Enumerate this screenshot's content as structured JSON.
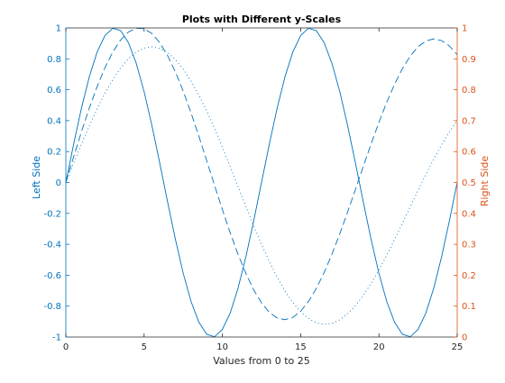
{
  "chart_data": {
    "type": "line",
    "title": "Plots with Different y-Scales",
    "xlabel": "Values from 0 to 25",
    "ylabel_left": "Left Side",
    "ylabel_right": "Right Side",
    "xlim": [
      0,
      25
    ],
    "ylim_left": [
      -1,
      1
    ],
    "ylim_right": [
      0,
      1
    ],
    "grid": false,
    "legend": "none",
    "x_ticks": [
      0,
      5,
      10,
      15,
      20,
      25
    ],
    "y_ticks_left": [
      -1,
      -0.8,
      -0.6,
      -0.4,
      -0.2,
      0,
      0.2,
      0.4,
      0.6,
      0.8,
      1
    ],
    "y_ticks_right": [
      0,
      0.1,
      0.2,
      0.3,
      0.4,
      0.5,
      0.6,
      0.7,
      0.8,
      0.9,
      1
    ],
    "colors": {
      "left": "#0072bd",
      "right": "#d95319",
      "axis": "#262626"
    },
    "series": [
      {
        "axis": "left",
        "line_style": "solid",
        "x": [
          0,
          0.5,
          1,
          1.5,
          2,
          2.5,
          3,
          3.5,
          4,
          4.5,
          5,
          5.5,
          6,
          6.5,
          7,
          7.5,
          8,
          8.5,
          9,
          9.5,
          10,
          10.5,
          11,
          11.5,
          12,
          12.5,
          13,
          13.5,
          14,
          14.5,
          15,
          15.5,
          16,
          16.5,
          17,
          17.5,
          18,
          18.5,
          19,
          19.5,
          20,
          20.5,
          21,
          21.5,
          22,
          22.5,
          23,
          23.5,
          24,
          24.5,
          25
        ],
        "y": [
          0,
          0.2487,
          0.4818,
          0.6845,
          0.8443,
          0.9511,
          0.998,
          0.9823,
          0.9048,
          0.7705,
          0.5878,
          0.3681,
          0.1253,
          -0.1253,
          -0.3681,
          -0.5878,
          -0.7705,
          -0.9048,
          -0.9823,
          -0.998,
          -0.9511,
          -0.8443,
          -0.6845,
          -0.4818,
          -0.2487,
          0,
          0.2487,
          0.4818,
          0.6845,
          0.8443,
          0.9511,
          0.998,
          0.9823,
          0.9048,
          0.7705,
          0.5878,
          0.3681,
          0.1253,
          -0.1253,
          -0.3681,
          -0.5878,
          -0.7705,
          -0.9048,
          -0.9823,
          -0.998,
          -0.9511,
          -0.8443,
          -0.6845,
          -0.4818,
          -0.2487,
          0
        ]
      },
      {
        "axis": "left",
        "line_style": "dashed",
        "x": [
          0,
          0.5,
          1,
          1.5,
          2,
          2.5,
          3,
          3.5,
          4,
          4.5,
          5,
          5.5,
          6,
          6.5,
          7,
          7.5,
          8,
          8.5,
          9,
          9.5,
          10,
          10.5,
          11,
          11.5,
          12,
          12.5,
          13,
          13.5,
          14,
          14.5,
          15,
          15.5,
          16,
          16.5,
          17,
          17.5,
          18,
          18.5,
          19,
          19.5,
          20,
          20.5,
          21,
          21.5,
          22,
          22.5,
          23,
          23.5,
          24,
          24.5,
          25
        ],
        "y": [
          0,
          0.1668,
          0.3289,
          0.4818,
          0.6211,
          0.7431,
          0.8443,
          0.9219,
          0.9738,
          0.9985,
          0.995,
          0.9634,
          0.9048,
          0.8212,
          0.7153,
          0.5903,
          0.45,
          0.2987,
          0.1409,
          -0.0186,
          -0.1754,
          -0.3255,
          -0.4646,
          -0.5887,
          -0.6945,
          -0.7792,
          -0.8406,
          -0.877,
          -0.8877,
          -0.8727,
          -0.833,
          -0.77,
          -0.6857,
          -0.5826,
          -0.4636,
          -0.3319,
          -0.1909,
          -0.0445,
          0.1036,
          0.2493,
          0.389,
          0.519,
          0.6359,
          0.7365,
          0.8181,
          0.8785,
          0.9159,
          0.9293,
          0.9184,
          0.8837,
          0.8265
        ]
      },
      {
        "axis": "right",
        "line_style": "dotted",
        "x": [
          0,
          0.5,
          1,
          1.5,
          2,
          2.5,
          3,
          3.5,
          4,
          4.5,
          5,
          5.5,
          6,
          6.5,
          7,
          7.5,
          8,
          8.5,
          9,
          9.5,
          10,
          10.5,
          11,
          11.5,
          12,
          12.5,
          13,
          13.5,
          14,
          14.5,
          15,
          15.5,
          16,
          16.5,
          17,
          17.5,
          18,
          18.5,
          19,
          19.5,
          20,
          20.5,
          21,
          21.5,
          22,
          22.5,
          23,
          23.5,
          24,
          24.5,
          25
        ],
        "y": [
          0.5,
          0.5628,
          0.6243,
          0.6832,
          0.7383,
          0.7886,
          0.8329,
          0.8704,
          0.9002,
          0.9218,
          0.9347,
          0.9388,
          0.9339,
          0.9201,
          0.8976,
          0.8668,
          0.8283,
          0.7829,
          0.7314,
          0.6748,
          0.6144,
          0.5513,
          0.4869,
          0.4227,
          0.3599,
          0.3,
          0.2441,
          0.1934,
          0.1489,
          0.1114,
          0.0815,
          0.0596,
          0.0461,
          0.041,
          0.0443,
          0.0557,
          0.0749,
          0.1014,
          0.1345,
          0.1733,
          0.2171,
          0.2648,
          0.3155,
          0.368,
          0.4214,
          0.4745,
          0.5263,
          0.5757,
          0.6217,
          0.6635,
          0.7003
        ]
      }
    ]
  }
}
